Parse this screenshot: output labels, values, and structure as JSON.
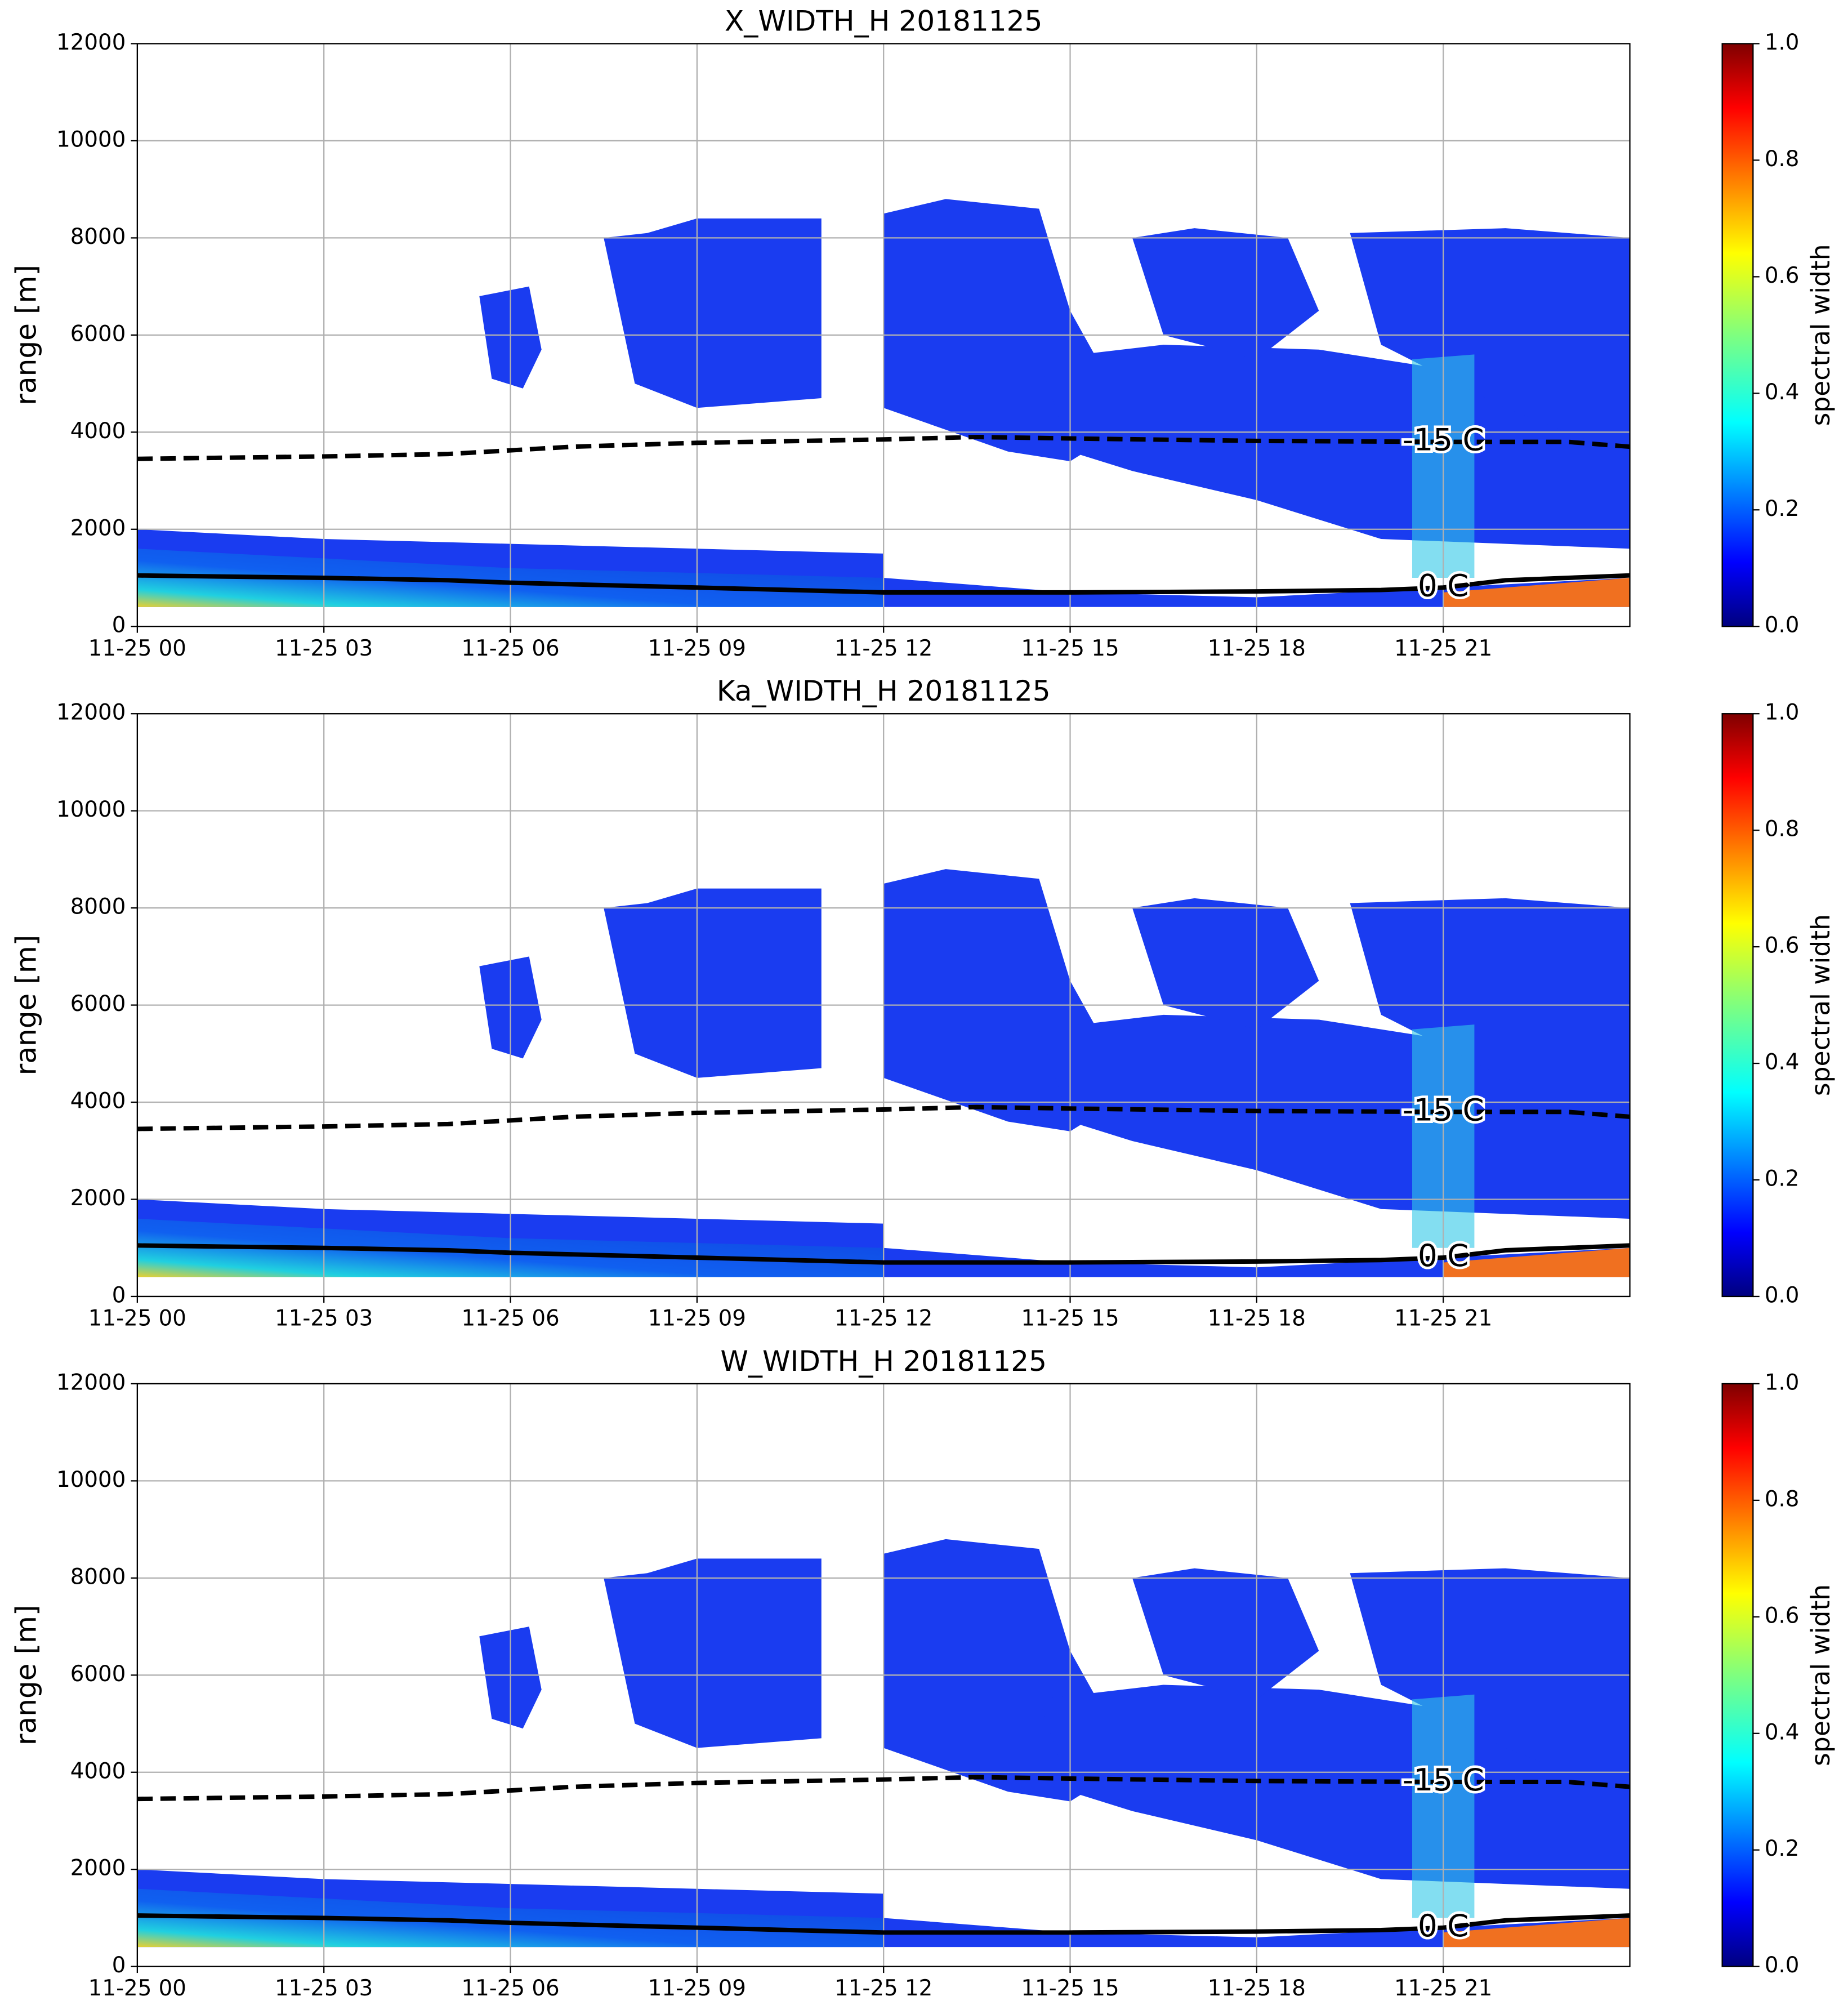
{
  "chart_data": [
    {
      "type": "heatmap",
      "title": "X_WIDTH_H 20181125",
      "ylabel": "range [m]",
      "xlim": [
        0,
        24
      ],
      "xticks": [
        {
          "value": 0,
          "label": "11-25 00"
        },
        {
          "value": 3,
          "label": "11-25 03"
        },
        {
          "value": 6,
          "label": "11-25 06"
        },
        {
          "value": 9,
          "label": "11-25 09"
        },
        {
          "value": 12,
          "label": "11-25 12"
        },
        {
          "value": 15,
          "label": "11-25 15"
        },
        {
          "value": 18,
          "label": "11-25 18"
        },
        {
          "value": 21,
          "label": "11-25 21"
        }
      ],
      "ylim": [
        0,
        12000
      ],
      "yticks": [
        0,
        2000,
        4000,
        6000,
        8000,
        10000,
        12000
      ],
      "grid": true,
      "colorbar": {
        "label": "spectral width",
        "lim": [
          0,
          1
        ],
        "ticks": [
          {
            "value": 0,
            "label": "0.0"
          },
          0.2,
          0.4,
          0.6,
          0.8,
          {
            "value": 1,
            "label": "1.0"
          }
        ],
        "colormap": "jet"
      },
      "contours": [
        {
          "label": "0 C",
          "style": "solid",
          "x": [
            0,
            3,
            5,
            6,
            9,
            12,
            15,
            18,
            20,
            21,
            22,
            24
          ],
          "y": [
            1050,
            1000,
            950,
            900,
            800,
            700,
            700,
            720,
            750,
            800,
            950,
            1050
          ]
        },
        {
          "label": "-15 C",
          "style": "dashed",
          "x": [
            0,
            3,
            5,
            7,
            9,
            12,
            13.5,
            15,
            18,
            21,
            23,
            24
          ],
          "y": [
            3450,
            3500,
            3550,
            3700,
            3780,
            3850,
            3900,
            3870,
            3820,
            3800,
            3800,
            3700
          ]
        }
      ]
    },
    {
      "type": "heatmap",
      "title": "Ka_WIDTH_H 20181125",
      "ylabel": "range [m]",
      "xlim": [
        0,
        24
      ],
      "xticks": [
        {
          "value": 0,
          "label": "11-25 00"
        },
        {
          "value": 3,
          "label": "11-25 03"
        },
        {
          "value": 6,
          "label": "11-25 06"
        },
        {
          "value": 9,
          "label": "11-25 09"
        },
        {
          "value": 12,
          "label": "11-25 12"
        },
        {
          "value": 15,
          "label": "11-25 15"
        },
        {
          "value": 18,
          "label": "11-25 18"
        },
        {
          "value": 21,
          "label": "11-25 21"
        }
      ],
      "ylim": [
        0,
        12000
      ],
      "yticks": [
        0,
        2000,
        4000,
        6000,
        8000,
        10000,
        12000
      ],
      "grid": true,
      "colorbar": {
        "label": "spectral width",
        "lim": [
          0,
          1
        ],
        "ticks": [
          {
            "value": 0,
            "label": "0.0"
          },
          0.2,
          0.4,
          0.6,
          0.8,
          {
            "value": 1,
            "label": "1.0"
          }
        ],
        "colormap": "jet"
      },
      "contours": [
        {
          "label": "0 C",
          "style": "solid",
          "x": [
            0,
            3,
            5,
            6,
            9,
            12,
            15,
            18,
            20,
            21,
            22,
            24
          ],
          "y": [
            1050,
            1000,
            950,
            900,
            800,
            700,
            700,
            720,
            750,
            800,
            950,
            1050
          ]
        },
        {
          "label": "-15 C",
          "style": "dashed",
          "x": [
            0,
            3,
            5,
            7,
            9,
            12,
            13.5,
            15,
            18,
            21,
            23,
            24
          ],
          "y": [
            3450,
            3500,
            3550,
            3700,
            3780,
            3850,
            3900,
            3870,
            3820,
            3800,
            3800,
            3700
          ]
        }
      ]
    },
    {
      "type": "heatmap",
      "title": "W_WIDTH_H 20181125",
      "ylabel": "range [m]",
      "xlim": [
        0,
        24
      ],
      "xticks": [
        {
          "value": 0,
          "label": "11-25 00"
        },
        {
          "value": 3,
          "label": "11-25 03"
        },
        {
          "value": 6,
          "label": "11-25 06"
        },
        {
          "value": 9,
          "label": "11-25 09"
        },
        {
          "value": 12,
          "label": "11-25 12"
        },
        {
          "value": 15,
          "label": "11-25 15"
        },
        {
          "value": 18,
          "label": "11-25 18"
        },
        {
          "value": 21,
          "label": "11-25 21"
        }
      ],
      "ylim": [
        0,
        12000
      ],
      "yticks": [
        0,
        2000,
        4000,
        6000,
        8000,
        10000,
        12000
      ],
      "grid": true,
      "colorbar": {
        "label": "spectral width",
        "lim": [
          0,
          1
        ],
        "ticks": [
          {
            "value": 0,
            "label": "0.0"
          },
          0.2,
          0.4,
          0.6,
          0.8,
          {
            "value": 1,
            "label": "1.0"
          }
        ],
        "colormap": "jet"
      },
      "contours": [
        {
          "label": "0 C",
          "style": "solid",
          "x": [
            0,
            3,
            5,
            6,
            9,
            12,
            15,
            18,
            20,
            21,
            22,
            24
          ],
          "y": [
            1050,
            1000,
            950,
            900,
            800,
            700,
            700,
            720,
            750,
            800,
            950,
            1050
          ]
        },
        {
          "label": "-15 C",
          "style": "dashed",
          "x": [
            0,
            3,
            5,
            7,
            9,
            12,
            13.5,
            15,
            18,
            21,
            23,
            24
          ],
          "y": [
            3450,
            3500,
            3550,
            3700,
            3780,
            3850,
            3900,
            3870,
            3820,
            3800,
            3800,
            3700
          ]
        }
      ]
    }
  ]
}
